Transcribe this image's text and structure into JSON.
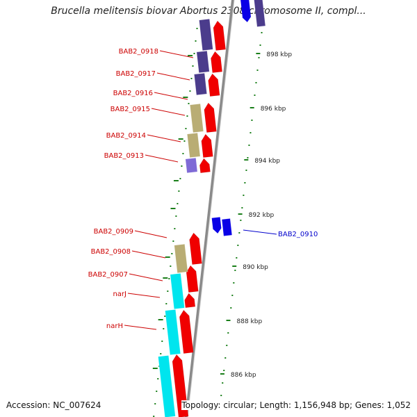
{
  "title": "Brucella melitensis biovar Abortus 2308 chromosome II, compl...",
  "footer": {
    "accession": "Accession: NC_007624",
    "topology": "Topology: circular; Length: 1,156,948 bp; Genes: 1,052"
  },
  "colors": {
    "cds_forward": "#f00000",
    "cds_reverse": "#0a00e6",
    "cog_purple": "#4b3c8c",
    "cog_tan": "#b9ad74",
    "cog_lavender": "#7f6ad6",
    "cog_cyan": "#00e5ee",
    "label_forward": "#cc0000",
    "label_reverse": "#0000cc",
    "backbone": "#8a8a8a",
    "tick": "#1a7f1a"
  },
  "kbp_ticks": [
    "898 kbp",
    "896 kbp",
    "894 kbp",
    "892 kbp",
    "890 kbp",
    "888 kbp",
    "886 kbp"
  ],
  "gene_labels": [
    {
      "name": "BAB2_0918",
      "strand": "forward"
    },
    {
      "name": "BAB2_0917",
      "strand": "forward"
    },
    {
      "name": "BAB2_0916",
      "strand": "forward"
    },
    {
      "name": "BAB2_0915",
      "strand": "forward"
    },
    {
      "name": "BAB2_0914",
      "strand": "forward"
    },
    {
      "name": "BAB2_0913",
      "strand": "forward"
    },
    {
      "name": "BAB2_0909",
      "strand": "forward"
    },
    {
      "name": "BAB2_0908",
      "strand": "forward"
    },
    {
      "name": "BAB2_0907",
      "strand": "forward"
    },
    {
      "name": "narJ",
      "strand": "forward"
    },
    {
      "name": "narH",
      "strand": "forward"
    },
    {
      "name": "BAB2_0910",
      "strand": "reverse"
    }
  ]
}
